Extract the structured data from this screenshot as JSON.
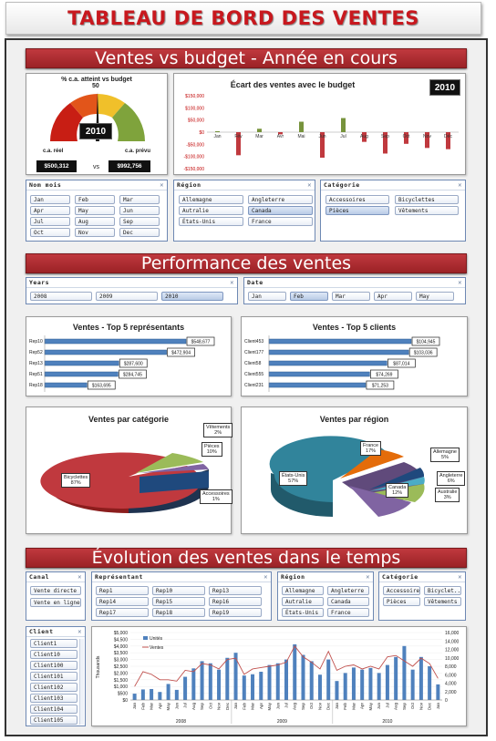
{
  "title": "TABLEAU DE BORD DES VENTES",
  "sections": {
    "s1": "Ventes vs budget - Année en cours",
    "s2": "Performance des ventes",
    "s3": "Évolution des ventes dans le temps"
  },
  "gauge": {
    "title": "% c.a. atteint vs budget",
    "value_label": "50",
    "year": "2010",
    "real_label": "c.a. réel",
    "real_value": "$500,312",
    "vs": "vs",
    "budget_label": "c.a. prévu",
    "budget_value": "$992,756",
    "percent": 50
  },
  "ecart_chart": {
    "title": "Écart des ventes avec le budget",
    "year_badge": "2010",
    "ticks": [
      "$150,000",
      "$100,000",
      "$50,000",
      "$0",
      "-$50,000",
      "-$100,000",
      "-$150,000"
    ],
    "months": [
      "Jan",
      "Fév",
      "Mar",
      "Avr",
      "Mai",
      "Jun",
      "Jul",
      "Aug",
      "Sep",
      "Oct",
      "Nov",
      "Déc"
    ],
    "values": [
      4000,
      -95000,
      14000,
      -9000,
      43000,
      -105000,
      58000,
      -40000,
      -88000,
      -48000,
      -65000,
      -70000
    ]
  },
  "slicer_month": {
    "header": "Nom mois",
    "items": [
      "Jan",
      "Feb",
      "Mar",
      "Apr",
      "May",
      "Jun",
      "Jul",
      "Aug",
      "Sep",
      "Oct",
      "Nov",
      "Dec"
    ]
  },
  "slicer_region1": {
    "header": "Région",
    "items": [
      "Allemagne",
      "Angleterre",
      "Autralie",
      "Canada",
      "États-Unis",
      "France"
    ]
  },
  "slicer_cat1": {
    "header": "Catégorie",
    "items": [
      "Accessoires",
      "Bicyclettes",
      "Pièces",
      "Vêtements"
    ]
  },
  "slicer_years": {
    "header": "Years",
    "items": [
      "2008",
      "2009",
      "2010"
    ]
  },
  "slicer_date": {
    "header": "Date",
    "items": [
      "Jan",
      "Feb",
      "Mar",
      "Apr",
      "May"
    ]
  },
  "top_reps": {
    "title": "Ventes - Top 5 représentants",
    "names": [
      "Rep10",
      "Rep52",
      "Rep13",
      "Rep51",
      "Rep18"
    ],
    "labels": [
      "$548,677",
      "$472,904",
      "$287,600",
      "$284,745",
      "$163,695"
    ],
    "values": [
      548677,
      472904,
      287600,
      284745,
      163695
    ]
  },
  "top_clients": {
    "title": "Ventes - Top 5 clients",
    "names": [
      "Client453",
      "Client177",
      "Client58",
      "Client555",
      "Client231"
    ],
    "labels": [
      "$104,945",
      "$103,036",
      "$87,014",
      "$74,269",
      "$71,253"
    ],
    "values": [
      104945,
      103036,
      87014,
      74269,
      71253
    ]
  },
  "pie_category": {
    "title": "Ventes par catégorie",
    "labels": [
      {
        "name": "Vêtements",
        "pct": "2%"
      },
      {
        "name": "Pièces",
        "pct": "10%"
      },
      {
        "name": "Bicyclettes",
        "pct": "87%"
      },
      {
        "name": "Accessoires",
        "pct": "1%"
      }
    ]
  },
  "pie_region": {
    "title": "Ventes par région",
    "labels": [
      {
        "name": "France",
        "pct": "17%"
      },
      {
        "name": "Allemagne",
        "pct": "5%"
      },
      {
        "name": "États-Unis",
        "pct": "57%"
      },
      {
        "name": "Angleterre",
        "pct": "6%"
      },
      {
        "name": "Canada",
        "pct": "12%"
      },
      {
        "name": "Australie",
        "pct": "3%"
      }
    ]
  },
  "slicer_canal": {
    "header": "Canal",
    "items": [
      "Vente directe",
      "Vente en ligne"
    ]
  },
  "slicer_rep": {
    "header": "Représentant",
    "items": [
      "Rep1",
      "Rep10",
      "Rep13",
      "Rep14",
      "Rep15",
      "Rep16",
      "Rep17",
      "Rep18",
      "Rep19"
    ]
  },
  "slicer_region2": {
    "header": "Région",
    "items": [
      "Allemagne",
      "Angleterre",
      "Autralie",
      "Canada",
      "États-Unis",
      "France"
    ]
  },
  "slicer_cat2": {
    "header": "Catégorie",
    "items": [
      "Accessoires",
      "Bicyclet...",
      "Pièces",
      "Vêtements"
    ]
  },
  "slicer_client": {
    "header": "Client",
    "items": [
      "Client1",
      "Client10",
      "Client100",
      "Client101",
      "Client102",
      "Client103",
      "Client104",
      "Client105"
    ]
  },
  "combo_chart": {
    "ylabel_left": "Thousands",
    "left_ticks": [
      "$5,000",
      "$4,500",
      "$4,000",
      "$3,500",
      "$3,000",
      "$2,500",
      "$2,000",
      "$1,500",
      "$1,000",
      "$500",
      "$0"
    ],
    "right_ticks": [
      "16,000",
      "14,000",
      "12,000",
      "10,000",
      "8,000",
      "6,000",
      "4,000",
      "2,000",
      "0"
    ],
    "legend_units": "Unités",
    "legend_sales": "Ventes",
    "years": [
      "2008",
      "2009",
      "2010"
    ],
    "month_labels": [
      "Jan",
      "Feb",
      "Mar",
      "Apr",
      "May",
      "Jun",
      "Jul",
      "Aug",
      "Sep",
      "Oct",
      "Nov",
      "Dec"
    ],
    "units": [
      1500,
      2500,
      2600,
      1900,
      3800,
      2400,
      5500,
      7500,
      9200,
      8700,
      7200,
      10000,
      11200,
      5800,
      6100,
      6700,
      8300,
      8700,
      9600,
      13200,
      10700,
      9200,
      6000,
      9600,
      4500,
      6400,
      7700,
      7200,
      7600,
      6400,
      8300,
      10200,
      12800,
      7200,
      10200,
      8000,
      3700
    ],
    "sales": [
      1000,
      2100,
      1900,
      1500,
      1500,
      1400,
      2200,
      2100,
      2700,
      2600,
      2300,
      3000,
      3100,
      1900,
      2300,
      2400,
      2500,
      2600,
      2800,
      4000,
      3200,
      2800,
      2300,
      3600,
      2200,
      2500,
      2600,
      2300,
      2500,
      2300,
      3200,
      3300,
      2900,
      2500,
      3100,
      2700,
      1600
    ],
    "colors": {
      "bars": "#4f81bd",
      "line": "#c0504d"
    }
  }
}
